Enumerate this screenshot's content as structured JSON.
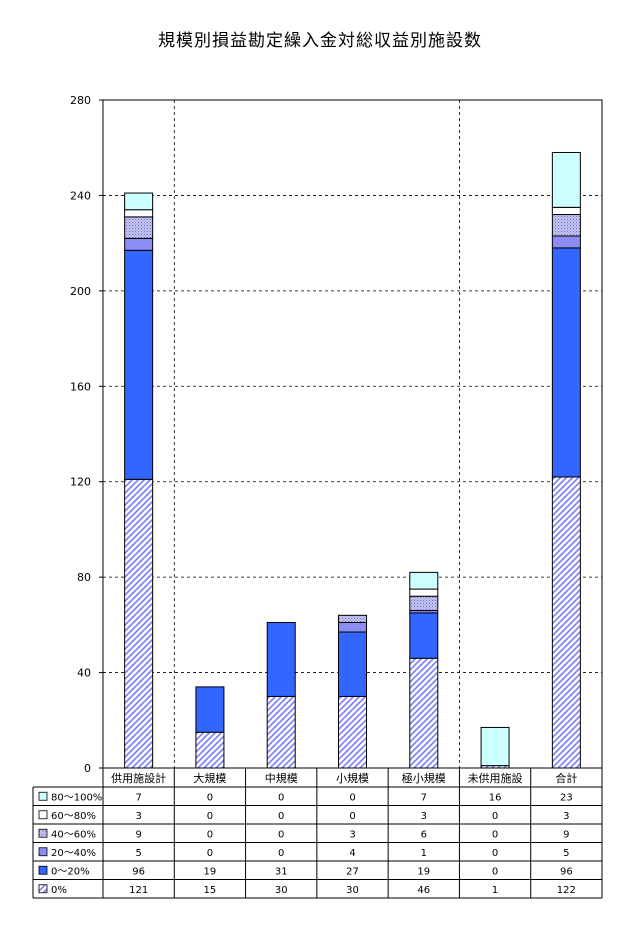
{
  "chart_data": {
    "type": "bar",
    "stacked": true,
    "title": "規模別損益勘定繰入金対総収益別施設数",
    "categories": [
      "供用施設計",
      "大規模",
      "中規模",
      "小規模",
      "極小規模",
      "未供用施設",
      "合計"
    ],
    "ylim": [
      0,
      280
    ],
    "yticks": [
      0,
      40,
      80,
      120,
      160,
      200,
      240,
      280
    ],
    "grid": true,
    "legend_position": "table-left",
    "series": [
      {
        "name": "0%",
        "values": [
          121,
          15,
          30,
          30,
          46,
          1,
          122
        ],
        "fill": "hatch",
        "color": "#7b7bff"
      },
      {
        "name": "0～20%",
        "values": [
          96,
          19,
          31,
          27,
          19,
          0,
          96
        ],
        "fill": "solid",
        "color": "#3366ff"
      },
      {
        "name": "20～40%",
        "values": [
          5,
          0,
          0,
          4,
          1,
          0,
          5
        ],
        "fill": "solid",
        "color": "#8c8cf5"
      },
      {
        "name": "40～60%",
        "values": [
          9,
          0,
          0,
          3,
          6,
          0,
          9
        ],
        "fill": "dots",
        "color": "#a5a5e6"
      },
      {
        "name": "60～80%",
        "values": [
          3,
          0,
          0,
          0,
          3,
          0,
          3
        ],
        "fill": "solid",
        "color": "#ffffff"
      },
      {
        "name": "80～100%",
        "values": [
          7,
          0,
          0,
          0,
          7,
          16,
          23
        ],
        "fill": "solid",
        "color": "#ccffff"
      }
    ]
  }
}
